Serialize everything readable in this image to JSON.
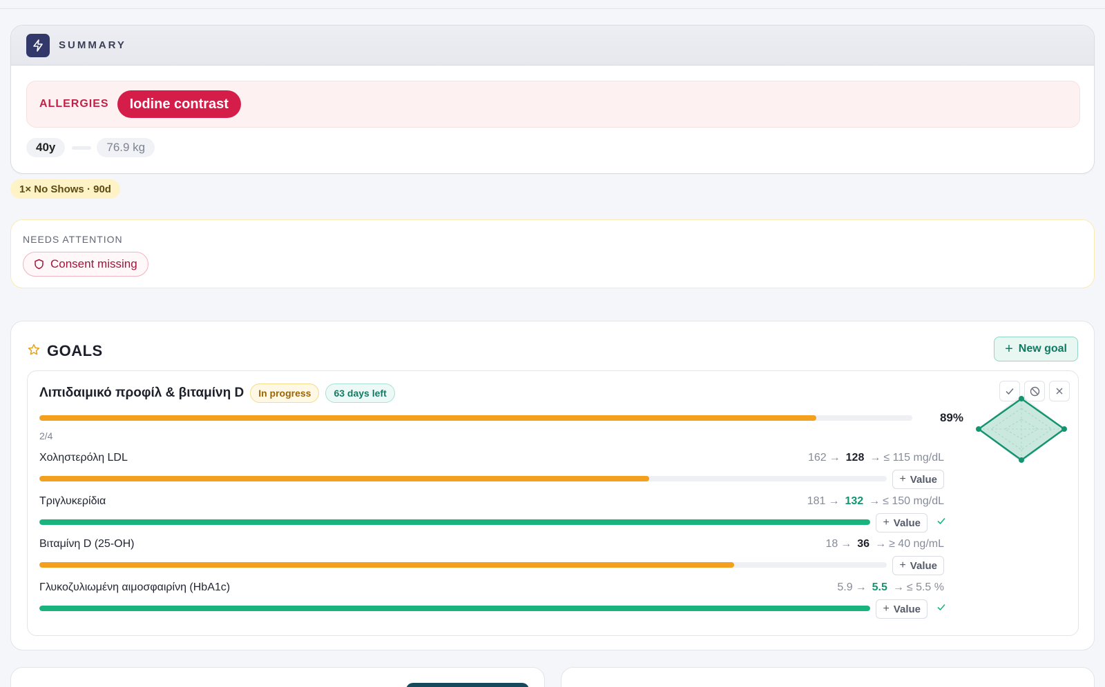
{
  "summary": {
    "title": "SUMMARY",
    "icon": "bolt-icon",
    "allergies_label": "ALLERGIES",
    "allergy": "Iodine contrast",
    "age": "40y",
    "weight": "76.9 kg"
  },
  "noshow": "1× No Shows · 90d",
  "attention": {
    "label": "NEEDS ATTENTION",
    "item": "Consent missing",
    "item_icon": "shield-icon"
  },
  "goals": {
    "title": "GOALS",
    "new_goal_label": "New goal",
    "goal": {
      "name": "Λιπιδαιμικό προφίλ & βιταμίνη D",
      "status": "In progress",
      "days_left": "63 days left",
      "progress": 0.89,
      "progress_label": "89%",
      "count": "2/4",
      "metrics": [
        {
          "name": "Χοληστερόλη LDL",
          "baseline": "162",
          "current": "128",
          "target": "≤ 115 mg/dL",
          "progress": 0.72,
          "met": false
        },
        {
          "name": "Τριγλυκερίδια",
          "baseline": "181",
          "current": "132",
          "target": "≤ 150 mg/dL",
          "progress": 1.0,
          "met": true
        },
        {
          "name": "Βιταμίνη D (25-OH)",
          "baseline": "18",
          "current": "36",
          "target": "≥ 40 ng/mL",
          "progress": 0.82,
          "met": false
        },
        {
          "name": "Γλυκοζυλιωμένη αιμοσφαιρίνη (HbA1c)",
          "baseline": "5.9",
          "current": "5.5",
          "target": "≤ 5.5 %",
          "progress": 1.0,
          "met": true
        }
      ],
      "value_button_label": "Value",
      "actions": [
        "check-icon",
        "ban-icon",
        "close-icon"
      ]
    }
  },
  "colors": {
    "accent_teal": "#14946f",
    "amber": "#f2a01e",
    "green": "#19b47e",
    "allergy_red": "#d41d48",
    "navy": "#33386b"
  }
}
